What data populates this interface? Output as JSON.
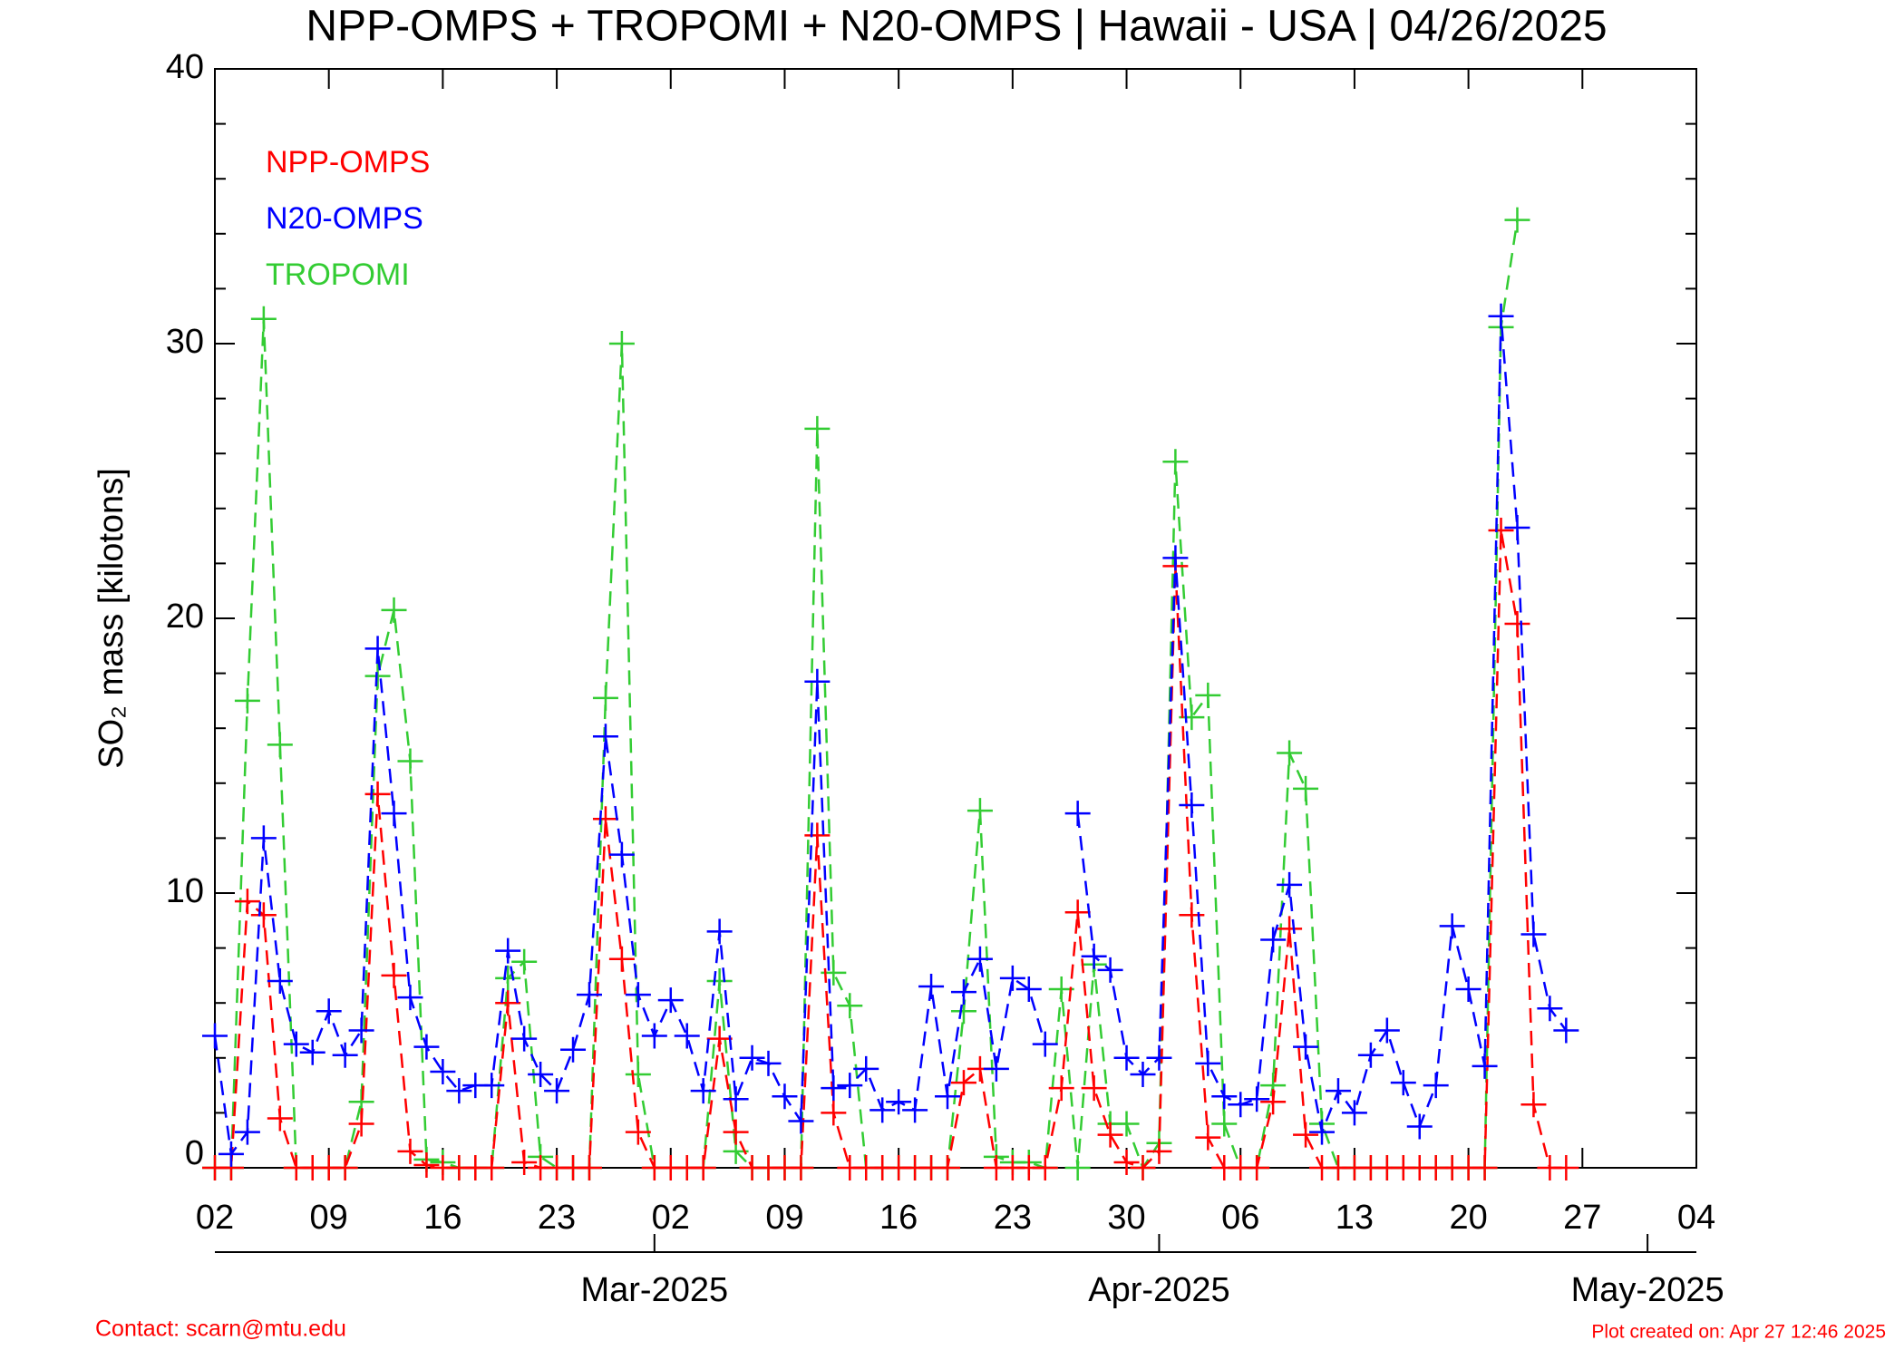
{
  "chart_data": {
    "type": "line",
    "title": "NPP-OMPS + TROPOMI + N20-OMPS | Hawaii - USA | 04/26/2025",
    "y_label": "SO₂ mass [kilotons]",
    "footer_left": "Contact: scarn@mtu.edu",
    "footer_right": "Plot created on: Apr 27 12:46 2025",
    "x": [
      "2025-02-02",
      "2025-02-03",
      "2025-02-04",
      "2025-02-05",
      "2025-02-06",
      "2025-02-07",
      "2025-02-08",
      "2025-02-09",
      "2025-02-10",
      "2025-02-11",
      "2025-02-12",
      "2025-02-13",
      "2025-02-14",
      "2025-02-15",
      "2025-02-16",
      "2025-02-17",
      "2025-02-18",
      "2025-02-19",
      "2025-02-20",
      "2025-02-21",
      "2025-02-22",
      "2025-02-23",
      "2025-02-24",
      "2025-02-25",
      "2025-02-26",
      "2025-02-27",
      "2025-02-28",
      "2025-03-01",
      "2025-03-02",
      "2025-03-03",
      "2025-03-04",
      "2025-03-05",
      "2025-03-06",
      "2025-03-07",
      "2025-03-08",
      "2025-03-09",
      "2025-03-10",
      "2025-03-11",
      "2025-03-12",
      "2025-03-13",
      "2025-03-14",
      "2025-03-15",
      "2025-03-16",
      "2025-03-17",
      "2025-03-18",
      "2025-03-19",
      "2025-03-20",
      "2025-03-21",
      "2025-03-22",
      "2025-03-23",
      "2025-03-24",
      "2025-03-25",
      "2025-03-26",
      "2025-03-27",
      "2025-03-28",
      "2025-03-29",
      "2025-03-30",
      "2025-03-31",
      "2025-04-01",
      "2025-04-02",
      "2025-04-03",
      "2025-04-04",
      "2025-04-05",
      "2025-04-06",
      "2025-04-07",
      "2025-04-08",
      "2025-04-09",
      "2025-04-10",
      "2025-04-11",
      "2025-04-12",
      "2025-04-13",
      "2025-04-14",
      "2025-04-15",
      "2025-04-16",
      "2025-04-17",
      "2025-04-18",
      "2025-04-19",
      "2025-04-20",
      "2025-04-21",
      "2025-04-22",
      "2025-04-23",
      "2025-04-24",
      "2025-04-25",
      "2025-04-26"
    ],
    "series": [
      {
        "name": "NPP-OMPS",
        "color": "#ff0000",
        "values": [
          0,
          0,
          9.7,
          9.2,
          1.8,
          0,
          0,
          0,
          0,
          1.6,
          13.6,
          7.0,
          0.6,
          0.1,
          0,
          0,
          0,
          0,
          6.0,
          0.2,
          0,
          0,
          0,
          0,
          12.7,
          7.6,
          1.3,
          0,
          0,
          0,
          0,
          4.7,
          1.3,
          0,
          0,
          0,
          0,
          12.1,
          2.0,
          0,
          0,
          0,
          0,
          0,
          0,
          0,
          3.1,
          3.6,
          0,
          0,
          0,
          0,
          2.9,
          9.3,
          2.9,
          1.2,
          0.2,
          0,
          0.6,
          21.9,
          9.2,
          1.1,
          0,
          0,
          0,
          2.4,
          8.7,
          1.2,
          0,
          0,
          0,
          0,
          0,
          0,
          0,
          0,
          0,
          0,
          0,
          23.2,
          19.8,
          2.3,
          0,
          0
        ]
      },
      {
        "name": "N20-OMPS",
        "color": "#0000ff",
        "values": [
          4.8,
          0.5,
          1.3,
          12.0,
          6.8,
          4.5,
          4.2,
          5.7,
          4.1,
          5.0,
          18.9,
          12.9,
          6.2,
          4.4,
          3.5,
          2.8,
          3.0,
          3.0,
          7.9,
          4.7,
          3.4,
          2.8,
          4.3,
          6.3,
          15.7,
          11.4,
          6.3,
          4.8,
          6.1,
          4.8,
          2.8,
          8.6,
          2.5,
          4.0,
          3.8,
          2.6,
          1.7,
          17.7,
          2.9,
          3.0,
          3.6,
          2.1,
          2.4,
          2.1,
          6.6,
          2.6,
          6.4,
          7.6,
          3.6,
          6.9,
          6.5,
          4.5,
          null,
          12.9,
          7.7,
          7.2,
          4.0,
          3.4,
          4.0,
          22.2,
          13.2,
          3.8,
          2.6,
          2.3,
          2.5,
          8.3,
          10.3,
          4.4,
          1.3,
          2.8,
          2.0,
          4.1,
          5.0,
          3.1,
          1.5,
          3.0,
          8.8,
          6.5,
          3.7,
          31.0,
          23.3,
          8.5,
          5.8,
          5.0
        ]
      },
      {
        "name": "TROPOMI",
        "color": "#33cc33",
        "values": [
          0,
          0,
          17.0,
          30.9,
          15.4,
          0,
          0,
          0,
          0,
          2.4,
          17.9,
          20.3,
          14.8,
          0.3,
          0.2,
          0,
          0,
          0,
          6.9,
          7.5,
          0.4,
          0,
          0,
          0,
          17.1,
          30.0,
          3.4,
          0,
          0,
          0,
          0,
          6.8,
          0.6,
          0,
          0,
          0,
          0,
          26.9,
          7.1,
          5.9,
          0,
          0,
          0,
          0,
          0,
          0,
          5.7,
          13.0,
          0.4,
          0.2,
          0.2,
          0,
          6.5,
          0,
          7.4,
          1.6,
          1.6,
          0,
          0.9,
          25.7,
          16.4,
          17.2,
          1.6,
          0,
          0,
          3.0,
          15.1,
          13.8,
          1.6,
          0,
          0,
          0,
          0,
          0,
          0,
          0,
          0,
          0,
          0,
          30.6,
          34.5,
          null,
          null,
          null
        ]
      }
    ],
    "xlim": [
      "2025-02-02",
      "2025-05-04"
    ],
    "xticks": [
      {
        "value": "2025-02-02",
        "label": "02"
      },
      {
        "value": "2025-02-09",
        "label": "09"
      },
      {
        "value": "2025-02-16",
        "label": "16"
      },
      {
        "value": "2025-02-23",
        "label": "23"
      },
      {
        "value": "2025-03-02",
        "label": "02"
      },
      {
        "value": "2025-03-09",
        "label": "09"
      },
      {
        "value": "2025-03-16",
        "label": "16"
      },
      {
        "value": "2025-03-23",
        "label": "23"
      },
      {
        "value": "2025-03-30",
        "label": "30"
      },
      {
        "value": "2025-04-06",
        "label": "06"
      },
      {
        "value": "2025-04-13",
        "label": "13"
      },
      {
        "value": "2025-04-20",
        "label": "20"
      },
      {
        "value": "2025-04-27",
        "label": "27"
      },
      {
        "value": "2025-05-04",
        "label": "04"
      }
    ],
    "month_ticks": [
      {
        "value": "2025-03-01",
        "label": "Mar-2025"
      },
      {
        "value": "2025-04-01",
        "label": "Apr-2025"
      },
      {
        "value": "2025-05-01",
        "label": "May-2025"
      }
    ],
    "ylim": [
      0,
      40
    ],
    "yticks": [
      0,
      10,
      20,
      30,
      40
    ],
    "yminorticks": [
      2,
      4,
      6,
      8,
      12,
      14,
      16,
      18,
      22,
      24,
      26,
      28,
      32,
      34,
      36,
      38
    ],
    "legend": "upper left"
  }
}
